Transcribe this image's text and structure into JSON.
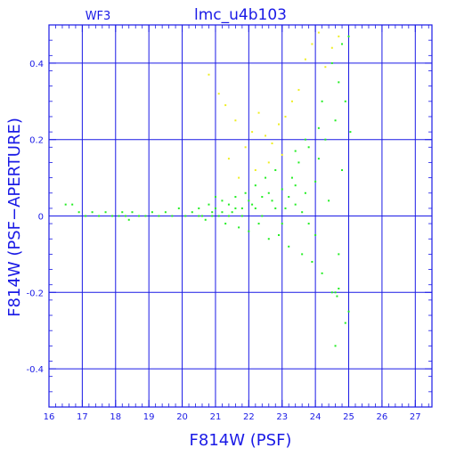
{
  "chart_data": {
    "type": "scatter",
    "title": "lmc_u4b103",
    "chip_label": "WF3",
    "xlabel": "F814W (PSF)",
    "ylabel": "F814W (PSF−APERTURE)",
    "xlim": [
      16,
      27.5
    ],
    "ylim": [
      -0.5,
      0.5
    ],
    "x_ticks": [
      16,
      17,
      18,
      19,
      20,
      21,
      22,
      23,
      24,
      25,
      26,
      27
    ],
    "y_ticks": [
      -0.4,
      -0.2,
      0,
      0.2,
      0.4
    ],
    "y_tick_labels": [
      "-0.4",
      "-0.2",
      "0",
      "0.2",
      "0.4"
    ],
    "grid": true,
    "colors": {
      "axes": "#1a1ae6",
      "background": "#ffffff",
      "primary_points": "#22ee22",
      "secondary_points": "#eeee22"
    },
    "series": [
      {
        "color": "#22ee22",
        "points": [
          [
            16.5,
            0.03
          ],
          [
            16.7,
            0.03
          ],
          [
            16.9,
            0.01
          ],
          [
            17.1,
            0.0
          ],
          [
            17.3,
            0.01
          ],
          [
            17.5,
            0.0
          ],
          [
            17.7,
            0.01
          ],
          [
            17.9,
            0.0
          ],
          [
            18.1,
            0.0
          ],
          [
            18.2,
            0.01
          ],
          [
            18.3,
            0.0
          ],
          [
            18.4,
            -0.01
          ],
          [
            18.5,
            0.01
          ],
          [
            18.7,
            0.0
          ],
          [
            18.9,
            0.0
          ],
          [
            19.1,
            0.01
          ],
          [
            19.3,
            0.0
          ],
          [
            19.5,
            0.01
          ],
          [
            19.7,
            0.0
          ],
          [
            19.9,
            0.02
          ],
          [
            20.1,
            0.0
          ],
          [
            20.3,
            0.01
          ],
          [
            20.5,
            0.02
          ],
          [
            20.6,
            0.0
          ],
          [
            20.7,
            -0.01
          ],
          [
            20.8,
            0.03
          ],
          [
            20.9,
            0.01
          ],
          [
            21.0,
            0.02
          ],
          [
            21.1,
            0.0
          ],
          [
            21.2,
            0.04
          ],
          [
            21.3,
            -0.02
          ],
          [
            21.4,
            0.03
          ],
          [
            21.5,
            0.01
          ],
          [
            21.6,
            0.05
          ],
          [
            21.7,
            -0.03
          ],
          [
            21.8,
            0.02
          ],
          [
            21.9,
            0.06
          ],
          [
            22.0,
            -0.04
          ],
          [
            22.1,
            0.03
          ],
          [
            22.2,
            0.08
          ],
          [
            22.3,
            -0.02
          ],
          [
            22.4,
            0.05
          ],
          [
            22.5,
            0.1
          ],
          [
            22.6,
            -0.06
          ],
          [
            22.7,
            0.04
          ],
          [
            22.8,
            0.12
          ],
          [
            22.9,
            -0.05
          ],
          [
            23.0,
            0.07
          ],
          [
            23.1,
            0.02
          ],
          [
            23.2,
            -0.08
          ],
          [
            23.3,
            0.1
          ],
          [
            23.4,
            0.03
          ],
          [
            23.5,
            0.14
          ],
          [
            23.6,
            -0.1
          ],
          [
            23.7,
            0.06
          ],
          [
            23.8,
            0.18
          ],
          [
            23.9,
            -0.12
          ],
          [
            24.0,
            0.09
          ],
          [
            24.1,
            0.15
          ],
          [
            24.2,
            -0.15
          ],
          [
            24.3,
            0.2
          ],
          [
            24.4,
            0.04
          ],
          [
            24.5,
            -0.2
          ],
          [
            24.6,
            0.25
          ],
          [
            24.7,
            -0.1
          ],
          [
            24.8,
            0.12
          ],
          [
            24.9,
            0.3
          ],
          [
            25.0,
            -0.25
          ],
          [
            25.05,
            0.22
          ],
          [
            24.9,
            -0.28
          ],
          [
            24.7,
            0.35
          ],
          [
            24.6,
            -0.34
          ],
          [
            24.8,
            0.45
          ],
          [
            25.0,
            0.47
          ],
          [
            24.5,
            0.4
          ],
          [
            24.2,
            0.3
          ],
          [
            24.0,
            -0.05
          ],
          [
            23.8,
            -0.02
          ],
          [
            23.6,
            0.01
          ],
          [
            23.4,
            0.08
          ],
          [
            23.2,
            0.05
          ],
          [
            23.0,
            -0.02
          ],
          [
            22.8,
            0.02
          ],
          [
            22.6,
            0.06
          ],
          [
            22.4,
            0.0
          ],
          [
            22.2,
            0.02
          ],
          [
            22.0,
            0.04
          ],
          [
            21.8,
            0.0
          ],
          [
            21.6,
            0.02
          ],
          [
            21.4,
            0.0
          ],
          [
            21.2,
            0.01
          ],
          [
            21.0,
            0.05
          ],
          [
            20.9,
            0.0
          ],
          [
            20.5,
            0.0
          ],
          [
            24.6,
            -0.2
          ],
          [
            24.65,
            -0.21
          ],
          [
            24.7,
            -0.19
          ],
          [
            24.1,
            0.23
          ],
          [
            23.7,
            0.2
          ],
          [
            23.4,
            0.17
          ]
        ]
      },
      {
        "color": "#eeee22",
        "points": [
          [
            20.8,
            0.37
          ],
          [
            21.1,
            0.32
          ],
          [
            21.3,
            0.29
          ],
          [
            21.6,
            0.25
          ],
          [
            21.9,
            0.18
          ],
          [
            22.1,
            0.22
          ],
          [
            22.3,
            0.27
          ],
          [
            22.5,
            0.21
          ],
          [
            22.7,
            0.19
          ],
          [
            22.9,
            0.24
          ],
          [
            23.1,
            0.26
          ],
          [
            23.3,
            0.3
          ],
          [
            23.5,
            0.33
          ],
          [
            23.7,
            0.41
          ],
          [
            23.9,
            0.45
          ],
          [
            24.1,
            0.48
          ],
          [
            24.3,
            0.39
          ],
          [
            24.5,
            0.44
          ],
          [
            24.7,
            0.47
          ],
          [
            23.0,
            0.16
          ],
          [
            22.6,
            0.14
          ],
          [
            22.2,
            0.12
          ],
          [
            21.7,
            0.1
          ],
          [
            21.4,
            0.15
          ]
        ]
      }
    ]
  }
}
